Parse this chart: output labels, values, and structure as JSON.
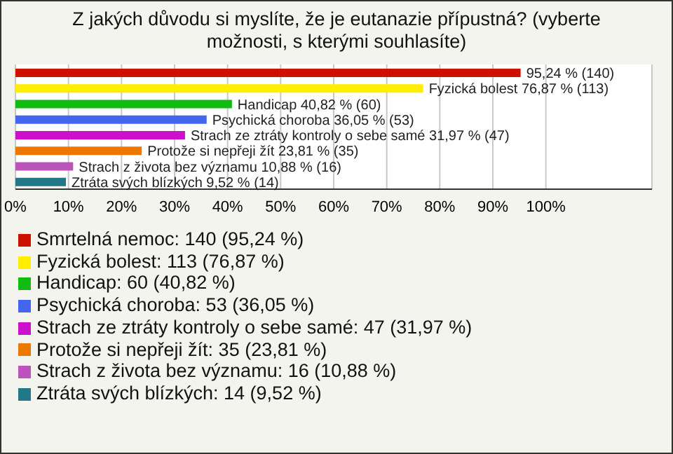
{
  "chart_data": {
    "type": "bar",
    "orientation": "horizontal",
    "stacked": true,
    "title": "Z jakých důvodu si myslíte, že je eutanazie přípustná? (vyberte možnosti, s kterými souhlasíte)",
    "categories": [
      null,
      null,
      null,
      null,
      null,
      null,
      null,
      null
    ],
    "series": [
      {
        "name": "Smrtelná nemoc: 140 (95,24 %)",
        "color": "#cc1100",
        "values": [
          95.24,
          null,
          null,
          null,
          null,
          null,
          null,
          null
        ],
        "value_labels": [
          "95,24 % (140)",
          null,
          null,
          null,
          null,
          null,
          null,
          null
        ]
      },
      {
        "name": "Fyzická bolest: 113 (76,87 %)",
        "color": "#ffee00",
        "values": [
          null,
          76.87,
          null,
          null,
          null,
          null,
          null,
          null
        ],
        "value_labels": [
          null,
          "Fyzická bolest 76,87 % (113)",
          null,
          null,
          null,
          null,
          null,
          null
        ]
      },
      {
        "name": "Handicap: 60 (40,82 %)",
        "color": "#11bb11",
        "values": [
          null,
          null,
          40.82,
          null,
          null,
          null,
          null,
          null
        ],
        "value_labels": [
          null,
          null,
          "Handicap 40,82 % (60)",
          null,
          null,
          null,
          null,
          null
        ]
      },
      {
        "name": "Psychická choroba: 53 (36,05 %)",
        "color": "#4466ee",
        "values": [
          null,
          null,
          null,
          36.05,
          null,
          null,
          null,
          null
        ],
        "value_labels": [
          null,
          null,
          null,
          "Psychická choroba 36,05 % (53)",
          null,
          null,
          null,
          null
        ]
      },
      {
        "name": "Strach ze ztráty kontroly o sebe samé: 47 (31,97 %)",
        "color": "#cc11cc",
        "values": [
          null,
          null,
          null,
          null,
          31.97,
          null,
          null,
          null
        ],
        "value_labels": [
          null,
          null,
          null,
          null,
          "Strach ze ztráty kontroly o sebe samé 31,97 % (47)",
          null,
          null,
          null
        ]
      },
      {
        "name": "Protože si nepřeji žít: 35 (23,81 %)",
        "color": "#ee7700",
        "values": [
          null,
          null,
          null,
          null,
          null,
          23.81,
          null,
          null
        ],
        "value_labels": [
          null,
          null,
          null,
          null,
          null,
          "Protože si nepřeji žít 23,81 % (35)",
          null,
          null
        ]
      },
      {
        "name": "Strach z života bez významu: 16 (10,88 %)",
        "color": "#bb55bb",
        "values": [
          null,
          null,
          null,
          null,
          null,
          null,
          10.88,
          null
        ],
        "value_labels": [
          null,
          null,
          null,
          null,
          null,
          null,
          "Strach z života bez významu 10,88 % (16)",
          null
        ]
      },
      {
        "name": "Ztráta svých blízkých: 14 (9,52 %)",
        "color": "#227788",
        "values": [
          null,
          null,
          null,
          null,
          null,
          null,
          null,
          9.52
        ],
        "value_labels": [
          null,
          null,
          null,
          null,
          null,
          null,
          null,
          "Ztráta svých blízkých 9,52 % (14)"
        ]
      }
    ],
    "xlim": [
      0,
      120
    ],
    "xticks": [
      {
        "value": 0,
        "label": "0%"
      },
      {
        "value": 10,
        "label": "10%"
      },
      {
        "value": 20,
        "label": "20%"
      },
      {
        "value": 30,
        "label": "30%"
      },
      {
        "value": 40,
        "label": "40%"
      },
      {
        "value": 50,
        "label": "50%"
      },
      {
        "value": 60,
        "label": "60%"
      },
      {
        "value": 70,
        "label": "70%"
      },
      {
        "value": 80,
        "label": "80%"
      },
      {
        "value": 90,
        "label": "90%"
      },
      {
        "value": 100,
        "label": "100%"
      }
    ],
    "grid": "x",
    "legend": "bottom",
    "tick_labels": "x"
  }
}
